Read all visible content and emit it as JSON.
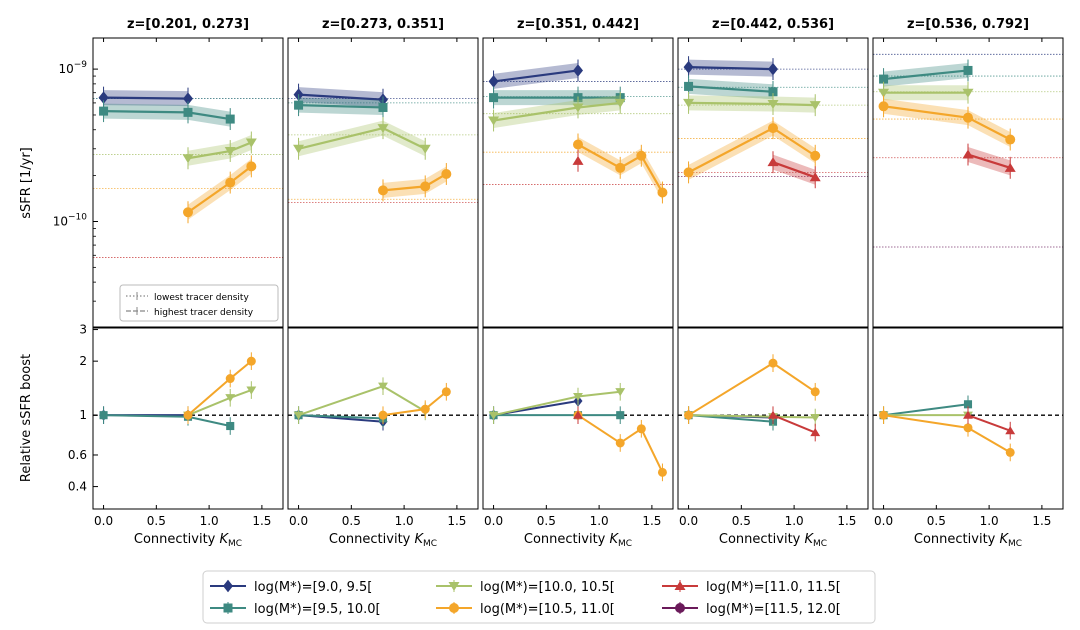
{
  "figure": {
    "ylabel_top": "sSFR [1/yr]",
    "ylabel_bottom": "Relative sSFR boost",
    "xlabel_prefix": "Connectivity ",
    "xlabel_symbol": "K",
    "xlabel_sub": "MC",
    "ytick_top": [
      {
        "v": 1e-09,
        "base": "10",
        "exp": "−9"
      },
      {
        "v": 1e-10,
        "base": "10",
        "exp": "−10"
      }
    ],
    "ytick_bottom": [
      {
        "v": 0.4,
        "label": "0.4"
      },
      {
        "v": 0.6,
        "label": "0.6"
      },
      {
        "v": 1,
        "label": "1"
      },
      {
        "v": 2,
        "label": "2"
      },
      {
        "v": 3,
        "label": "3"
      }
    ],
    "xticks": [
      {
        "v": 0,
        "label": "0.0"
      },
      {
        "v": 0.5,
        "label": "0.5"
      },
      {
        "v": 1.0,
        "label": "1.0"
      },
      {
        "v": 1.5,
        "label": "1.5"
      }
    ],
    "density_legend": {
      "lowest": "lowest tracer density",
      "highest": "highest tracer density"
    },
    "colors": {
      "m0": "#2a3a7e",
      "m1": "#3e8a82",
      "m2": "#a9c26a",
      "m3": "#f4a62a",
      "m4": "#c83a3a",
      "m5": "#6a1a5a"
    }
  },
  "chart_data": {
    "type": "line",
    "xlim": [
      -0.1,
      1.7
    ],
    "ylim_top": [
      2e-11,
      1.6e-09
    ],
    "yscale_top": "log",
    "ylim_bottom": [
      0.3,
      3.1
    ],
    "yscale_bottom": "log",
    "legend": [
      {
        "key": "m0",
        "label": "log(M*)=[9.0, 9.5[",
        "marker": "diamond"
      },
      {
        "key": "m1",
        "label": "log(M*)=[9.5, 10.0[",
        "marker": "square"
      },
      {
        "key": "m2",
        "label": "log(M*)=[10.0, 10.5[",
        "marker": "triangle-down"
      },
      {
        "key": "m3",
        "label": "log(M*)=[10.5, 11.0[",
        "marker": "circle"
      },
      {
        "key": "m4",
        "label": "log(M*)=[11.0, 11.5[",
        "marker": "triangle-up"
      },
      {
        "key": "m5",
        "label": "log(M*)=[11.5, 12.0[",
        "marker": "circle"
      }
    ],
    "panels": [
      {
        "title": "z=[0.201, 0.273]",
        "field": {
          "m0": 6.4e-10,
          "m1": 6.4e-10,
          "m2": 2.75e-10,
          "m3": 1.65e-10,
          "m4": 5.8e-11
        },
        "series": [
          {
            "key": "m0",
            "x": [
              0,
              0.8
            ],
            "y": [
              6.5e-10,
              6.4e-10
            ],
            "boost": [
              1.0,
              1.0
            ]
          },
          {
            "key": "m1",
            "x": [
              0,
              0.8,
              1.2
            ],
            "y": [
              5.3e-10,
              5.2e-10,
              4.7e-10
            ],
            "boost": [
              1.0,
              0.98,
              0.87
            ]
          },
          {
            "key": "m2",
            "x": [
              0.8,
              1.2,
              1.4
            ],
            "y": [
              2.6e-10,
              2.9e-10,
              3.3e-10
            ],
            "boost": [
              1.0,
              1.25,
              1.38
            ]
          },
          {
            "key": "m3",
            "x": [
              0.8,
              1.2,
              1.4
            ],
            "y": [
              1.15e-10,
              1.8e-10,
              2.3e-10
            ],
            "boost": [
              1.0,
              1.6,
              2.0
            ]
          }
        ]
      },
      {
        "title": "z=[0.273, 0.351]",
        "field": {
          "m0": 6.4e-10,
          "m1": 6e-10,
          "m2": 3.7e-10,
          "m3": 1.4e-10,
          "m4": 1.33e-10
        },
        "series": [
          {
            "key": "m0",
            "x": [
              0,
              0.8
            ],
            "y": [
              6.8e-10,
              6.3e-10
            ],
            "boost": [
              1.0,
              0.92
            ]
          },
          {
            "key": "m1",
            "x": [
              0,
              0.8
            ],
            "y": [
              5.8e-10,
              5.6e-10
            ],
            "boost": [
              1.0,
              0.96
            ]
          },
          {
            "key": "m2",
            "x": [
              0,
              0.8,
              1.2
            ],
            "y": [
              3e-10,
              4.1e-10,
              3e-10
            ],
            "boost": [
              1.0,
              1.45,
              1.05
            ]
          },
          {
            "key": "m3",
            "x": [
              0.8,
              1.2,
              1.4
            ],
            "y": [
              1.6e-10,
              1.7e-10,
              2.05e-10
            ],
            "boost": [
              1.0,
              1.08,
              1.35
            ]
          }
        ]
      },
      {
        "title": "z=[0.351, 0.442]",
        "field": {
          "m0": 8.3e-10,
          "m1": 6.6e-10,
          "m2": 5.1e-10,
          "m3": 2.85e-10,
          "m4": 1.75e-10
        },
        "series": [
          {
            "key": "m0",
            "x": [
              0,
              0.8
            ],
            "y": [
              8.3e-10,
              9.8e-10
            ],
            "boost": [
              1.0,
              1.2
            ]
          },
          {
            "key": "m1",
            "x": [
              0,
              0.8,
              1.2
            ],
            "y": [
              6.5e-10,
              6.5e-10,
              6.5e-10
            ],
            "boost": [
              1.0,
              1.0,
              1.0
            ]
          },
          {
            "key": "m2",
            "x": [
              0,
              0.8,
              1.2
            ],
            "y": [
              4.6e-10,
              5.6e-10,
              6e-10
            ],
            "boost": [
              1.0,
              1.27,
              1.35
            ]
          },
          {
            "key": "m3",
            "x": [
              0.8,
              1.2,
              1.4,
              1.6
            ],
            "y": [
              3.2e-10,
              2.25e-10,
              2.7e-10,
              1.55e-10
            ],
            "boost": [
              1.0,
              0.7,
              0.84,
              0.48
            ]
          },
          {
            "key": "m4",
            "x": [
              0.8
            ],
            "y": [
              2.5e-10
            ],
            "boost": [
              1.0
            ]
          }
        ]
      },
      {
        "title": "z=[0.442, 0.536]",
        "field": {
          "m0": 1e-09,
          "m1": 7.6e-10,
          "m2": 5.8e-10,
          "m3": 3.5e-10,
          "m4": 2.1e-10,
          "m5": 1.97e-10
        },
        "series": [
          {
            "key": "m0",
            "x": [
              0,
              0.8
            ],
            "y": [
              1.03e-09,
              1e-09
            ],
            "boost": [
              1.0,
              0.97
            ]
          },
          {
            "key": "m1",
            "x": [
              0,
              0.8
            ],
            "y": [
              7.7e-10,
              7.1e-10
            ],
            "boost": [
              1.0,
              0.92
            ]
          },
          {
            "key": "m2",
            "x": [
              0,
              0.8,
              1.2
            ],
            "y": [
              6e-10,
              5.9e-10,
              5.8e-10
            ],
            "boost": [
              1.0,
              0.98,
              0.97
            ]
          },
          {
            "key": "m3",
            "x": [
              0,
              0.8,
              1.2
            ],
            "y": [
              2.1e-10,
              4.1e-10,
              2.7e-10
            ],
            "boost": [
              1.0,
              1.95,
              1.35
            ]
          },
          {
            "key": "m4",
            "x": [
              0.8,
              1.2
            ],
            "y": [
              2.45e-10,
              1.95e-10
            ],
            "boost": [
              1.0,
              0.8
            ]
          }
        ]
      },
      {
        "title": "z=[0.536, 0.792]",
        "field": {
          "m0": 1.25e-09,
          "m1": 9e-10,
          "m2": 7.1e-10,
          "m3": 4.7e-10,
          "m4": 2.62e-10,
          "m5": 6.8e-11
        },
        "series": [
          {
            "key": "m1",
            "x": [
              0,
              0.8
            ],
            "y": [
              8.6e-10,
              9.8e-10
            ],
            "boost": [
              1.0,
              1.15
            ]
          },
          {
            "key": "m2",
            "x": [
              0,
              0.8
            ],
            "y": [
              7e-10,
              7e-10
            ],
            "boost": [
              1.0,
              1.0
            ]
          },
          {
            "key": "m3",
            "x": [
              0,
              0.8,
              1.2
            ],
            "y": [
              5.7e-10,
              4.8e-10,
              3.45e-10
            ],
            "boost": [
              1.0,
              0.85,
              0.62
            ]
          },
          {
            "key": "m4",
            "x": [
              0.8,
              1.2
            ],
            "y": [
              2.75e-10,
              2.25e-10
            ],
            "boost": [
              1.0,
              0.82
            ]
          }
        ]
      }
    ]
  }
}
